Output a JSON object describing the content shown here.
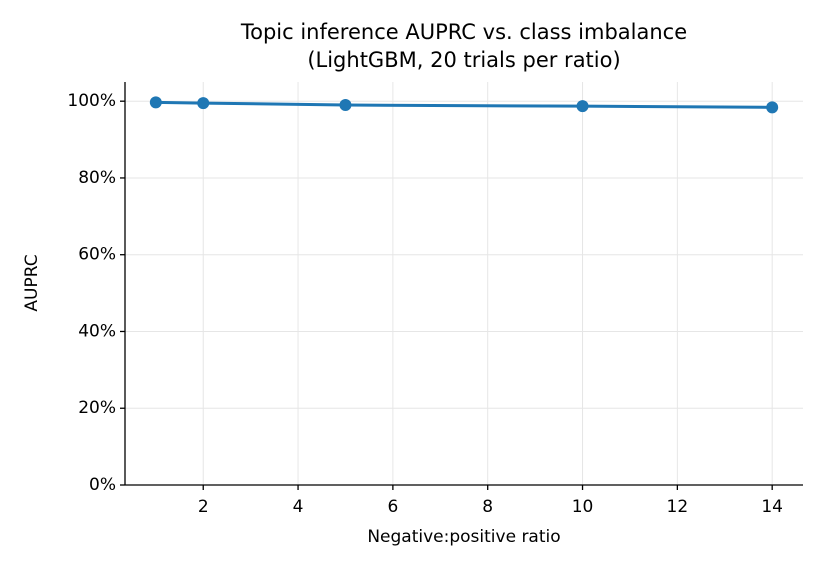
{
  "chart_data": {
    "type": "line",
    "title": [
      "Topic inference AUPRC vs. class imbalance",
      "(LightGBM, 20 trials per ratio)"
    ],
    "x_label": "Negative:positive ratio",
    "y_label": "AUPRC",
    "x": [
      1,
      2,
      5,
      10,
      14
    ],
    "series": [
      {
        "name": "AUPRC",
        "color": "#1f77b4",
        "values": [
          99.7,
          99.5,
          99.0,
          98.7,
          98.4
        ]
      }
    ],
    "xlim": [
      0.35,
      14.65
    ],
    "xticks": [
      2,
      4,
      6,
      8,
      10,
      12,
      14
    ],
    "ylim": [
      0,
      105
    ],
    "yticks": [
      {
        "value": 0,
        "label": "0%"
      },
      {
        "value": 20,
        "label": "20%"
      },
      {
        "value": 40,
        "label": "40%"
      },
      {
        "value": 60,
        "label": "60%"
      },
      {
        "value": 80,
        "label": "80%"
      },
      {
        "value": 100,
        "label": "100%"
      }
    ],
    "grid": true
  }
}
